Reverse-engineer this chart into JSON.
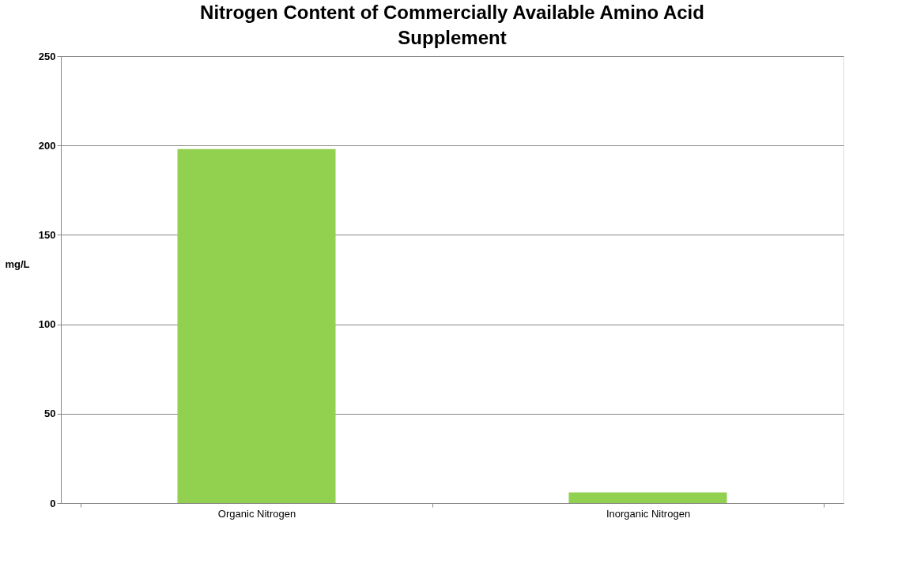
{
  "chart_data": {
    "type": "bar",
    "title": "Nitrogen Content of Commercially Available Amino Acid Supplement",
    "ylabel": "mg/L",
    "categories": [
      "Organic Nitrogen",
      "Inorganic Nitrogen"
    ],
    "series": [
      {
        "color": "#92d050",
        "values": [
          198,
          6
        ]
      }
    ],
    "ylim": [
      0,
      250
    ],
    "yticks": [
      0,
      50,
      100,
      150,
      200,
      250
    ],
    "grid": "y"
  }
}
